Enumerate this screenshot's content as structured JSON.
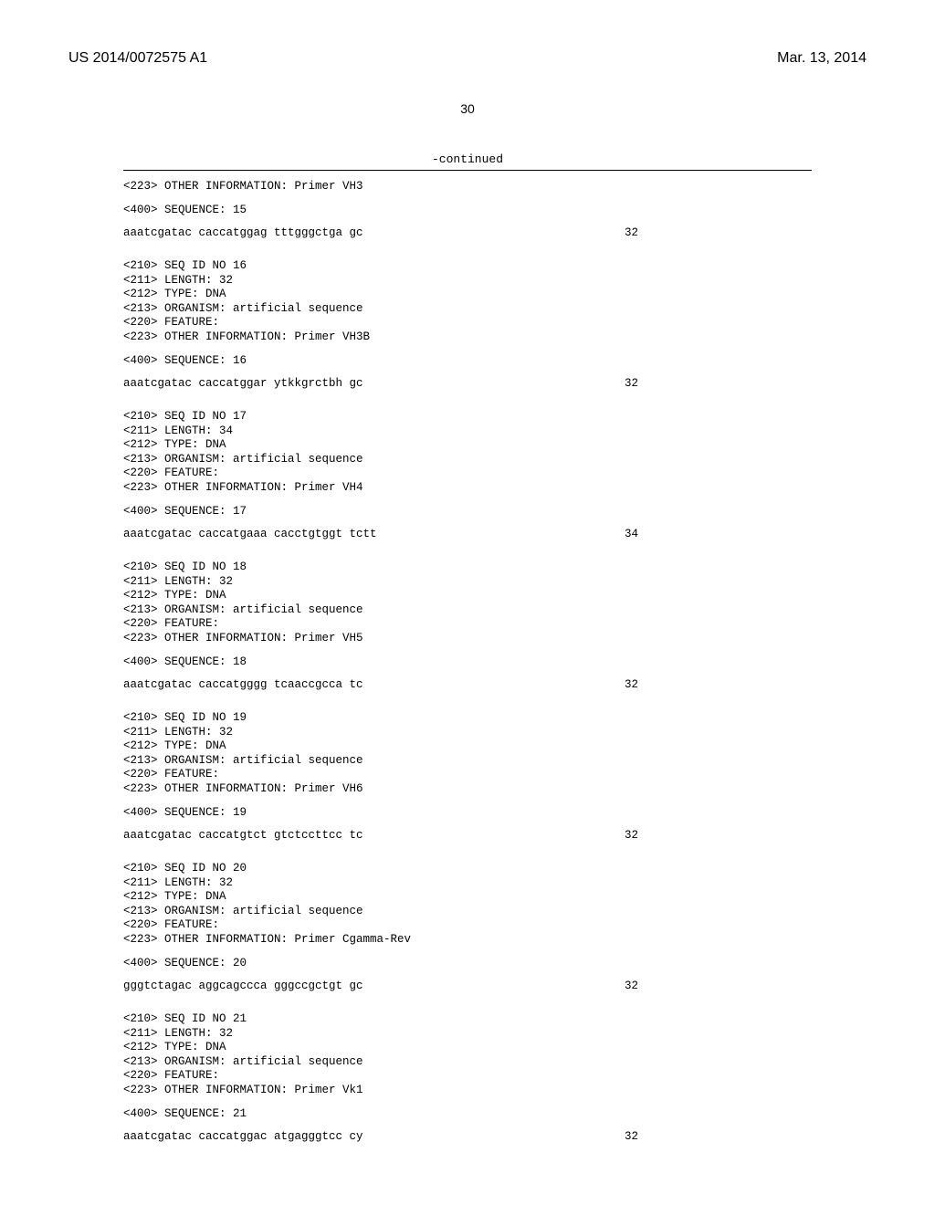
{
  "header": {
    "publication_number": "US 2014/0072575 A1",
    "publication_date": "Mar. 13, 2014"
  },
  "page_number": "30",
  "continued_label": "-continued",
  "sequences": [
    {
      "prefix_lines": [
        "<223> OTHER INFORMATION: Primer VH3"
      ],
      "sequence_label": "<400> SEQUENCE: 15",
      "sequence": "aaatcgatac caccatggag tttgggctga gc",
      "length_num": "32"
    },
    {
      "header_lines": [
        "<210> SEQ ID NO 16",
        "<211> LENGTH: 32",
        "<212> TYPE: DNA",
        "<213> ORGANISM: artificial sequence",
        "<220> FEATURE:",
        "<223> OTHER INFORMATION: Primer VH3B"
      ],
      "sequence_label": "<400> SEQUENCE: 16",
      "sequence": "aaatcgatac caccatggar ytkkgrctbh gc",
      "length_num": "32"
    },
    {
      "header_lines": [
        "<210> SEQ ID NO 17",
        "<211> LENGTH: 34",
        "<212> TYPE: DNA",
        "<213> ORGANISM: artificial sequence",
        "<220> FEATURE:",
        "<223> OTHER INFORMATION: Primer VH4"
      ],
      "sequence_label": "<400> SEQUENCE: 17",
      "sequence": "aaatcgatac caccatgaaa cacctgtggt tctt",
      "length_num": "34"
    },
    {
      "header_lines": [
        "<210> SEQ ID NO 18",
        "<211> LENGTH: 32",
        "<212> TYPE: DNA",
        "<213> ORGANISM: artificial sequence",
        "<220> FEATURE:",
        "<223> OTHER INFORMATION: Primer VH5"
      ],
      "sequence_label": "<400> SEQUENCE: 18",
      "sequence": "aaatcgatac caccatgggg tcaaccgcca tc",
      "length_num": "32"
    },
    {
      "header_lines": [
        "<210> SEQ ID NO 19",
        "<211> LENGTH: 32",
        "<212> TYPE: DNA",
        "<213> ORGANISM: artificial sequence",
        "<220> FEATURE:",
        "<223> OTHER INFORMATION: Primer VH6"
      ],
      "sequence_label": "<400> SEQUENCE: 19",
      "sequence": "aaatcgatac caccatgtct gtctccttcc tc",
      "length_num": "32"
    },
    {
      "header_lines": [
        "<210> SEQ ID NO 20",
        "<211> LENGTH: 32",
        "<212> TYPE: DNA",
        "<213> ORGANISM: artificial sequence",
        "<220> FEATURE:",
        "<223> OTHER INFORMATION: Primer Cgamma-Rev"
      ],
      "sequence_label": "<400> SEQUENCE: 20",
      "sequence": "gggtctagac aggcagccca gggccgctgt gc",
      "length_num": "32"
    },
    {
      "header_lines": [
        "<210> SEQ ID NO 21",
        "<211> LENGTH: 32",
        "<212> TYPE: DNA",
        "<213> ORGANISM: artificial sequence",
        "<220> FEATURE:",
        "<223> OTHER INFORMATION: Primer Vk1"
      ],
      "sequence_label": "<400> SEQUENCE: 21",
      "sequence": "aaatcgatac caccatggac atgagggtcc cy",
      "length_num": "32"
    }
  ]
}
